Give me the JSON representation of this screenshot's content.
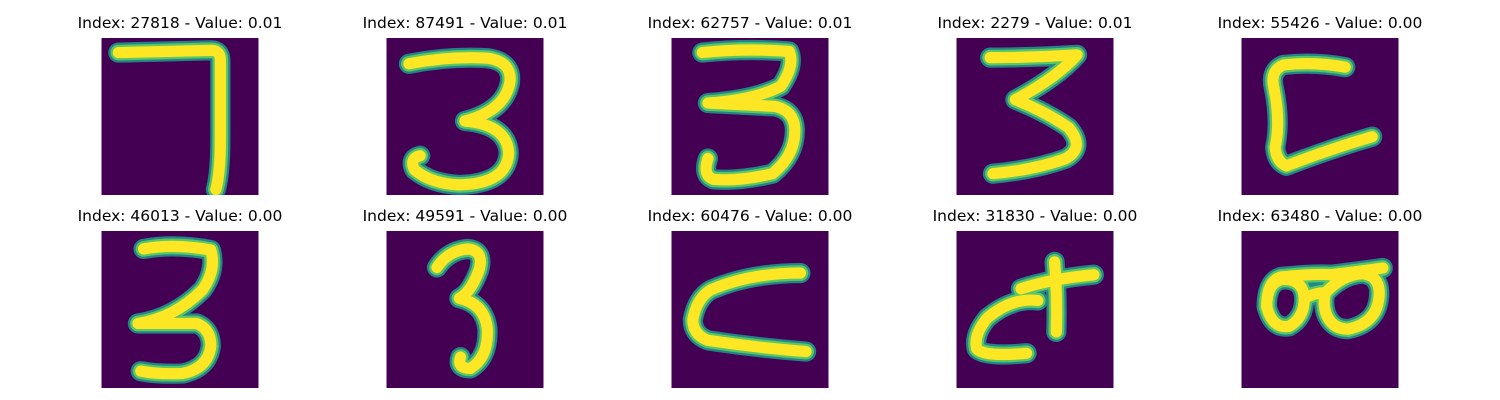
{
  "colors": {
    "background": "#440154",
    "stroke_core": "#fde725",
    "stroke_edge": "#21918c",
    "stroke_mid": "#5ec962"
  },
  "panels": [
    {
      "index": "27818",
      "value": "0.01",
      "title": "Index: 27818 - Value: 0.01",
      "glyph": "seven"
    },
    {
      "index": "87491",
      "value": "0.01",
      "title": "Index: 87491 - Value: 0.01",
      "glyph": "three-a"
    },
    {
      "index": "62757",
      "value": "0.01",
      "title": "Index: 62757 - Value: 0.01",
      "glyph": "three-b"
    },
    {
      "index": "2279",
      "value": "0.01",
      "title": "Index: 2279 - Value: 0.01",
      "glyph": "three-c"
    },
    {
      "index": "55426",
      "value": "0.00",
      "title": "Index: 55426 - Value: 0.00",
      "glyph": "c-shape"
    },
    {
      "index": "46013",
      "value": "0.00",
      "title": "Index: 46013 - Value: 0.00",
      "glyph": "three-d"
    },
    {
      "index": "49591",
      "value": "0.00",
      "title": "Index: 49591 - Value: 0.00",
      "glyph": "three-e"
    },
    {
      "index": "60476",
      "value": "0.00",
      "title": "Index: 60476 - Value: 0.00",
      "glyph": "c-wide"
    },
    {
      "index": "31830",
      "value": "0.00",
      "title": "Index: 31830 - Value: 0.00",
      "glyph": "ct"
    },
    {
      "index": "63480",
      "value": "0.00",
      "title": "Index: 63480 - Value: 0.00",
      "glyph": "glasses"
    }
  ]
}
